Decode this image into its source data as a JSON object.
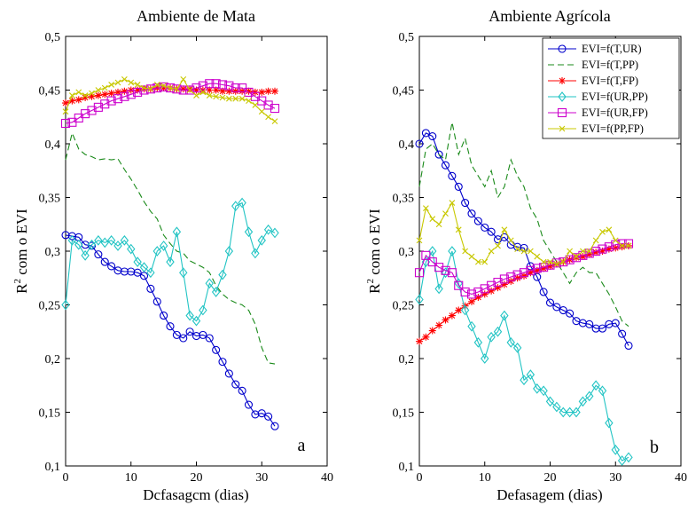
{
  "series_styles": [
    {
      "name": "EVI=f(T,UR)",
      "color": "#0000cc",
      "marker": "circle",
      "dash": "none"
    },
    {
      "name": "EVI=f(T,PP)",
      "color": "#1a8a1a",
      "marker": "none",
      "dash": "dashed"
    },
    {
      "name": "EVI=f(T,FP)",
      "color": "#ff0000",
      "marker": "star",
      "dash": "none"
    },
    {
      "name": "EVI=f(UR,PP)",
      "color": "#22c4c4",
      "marker": "diamond",
      "dash": "none"
    },
    {
      "name": "EVI=f(UR,FP)",
      "color": "#cc00cc",
      "marker": "square",
      "dash": "none"
    },
    {
      "name": "EVI=f(PP,FP)",
      "color": "#c8c800",
      "marker": "x",
      "dash": "none"
    }
  ],
  "chart_data": [
    {
      "type": "line",
      "title": "Ambiente de Mata",
      "xlabel": "Dcfasagcm (dias)",
      "ylabel_main": "R",
      "ylabel_sup": "2",
      "ylabel_rest": " com o EVI",
      "panel_label": "a",
      "xlim": [
        0,
        40
      ],
      "ylim": [
        0.1,
        0.5
      ],
      "xticks": [
        "0",
        "10",
        "20",
        "30",
        "40"
      ],
      "yticks": [
        "0,1",
        "0,15",
        "0,2",
        "0,25",
        "0,3",
        "0,35",
        "0,4",
        "0,45",
        "0,5"
      ],
      "legend": false,
      "series": [
        {
          "name": "EVI=f(T,UR)",
          "x": [
            0,
            1,
            2,
            3,
            4,
            5,
            6,
            7,
            8,
            9,
            10,
            11,
            12,
            13,
            14,
            15,
            16,
            17,
            18,
            19,
            20,
            21,
            22,
            23,
            24,
            25,
            26,
            27,
            28,
            29,
            30,
            31,
            32
          ],
          "values": [
            0.315,
            0.314,
            0.313,
            0.306,
            0.305,
            0.297,
            0.29,
            0.286,
            0.282,
            0.281,
            0.281,
            0.28,
            0.277,
            0.265,
            0.253,
            0.24,
            0.23,
            0.222,
            0.219,
            0.225,
            0.221,
            0.222,
            0.219,
            0.208,
            0.197,
            0.186,
            0.176,
            0.17,
            0.157,
            0.148,
            0.149,
            0.146,
            0.137
          ]
        },
        {
          "name": "EVI=f(T,PP)",
          "x": [
            0,
            1,
            2,
            3,
            4,
            5,
            6,
            7,
            8,
            9,
            10,
            11,
            12,
            13,
            14,
            15,
            16,
            17,
            18,
            19,
            20,
            21,
            22,
            23,
            24,
            25,
            26,
            27,
            28,
            29,
            30,
            31,
            32
          ],
          "values": [
            0.385,
            0.41,
            0.395,
            0.39,
            0.388,
            0.385,
            0.386,
            0.385,
            0.386,
            0.376,
            0.367,
            0.357,
            0.346,
            0.337,
            0.33,
            0.315,
            0.307,
            0.3,
            0.298,
            0.291,
            0.288,
            0.285,
            0.28,
            0.268,
            0.26,
            0.255,
            0.252,
            0.25,
            0.245,
            0.232,
            0.21,
            0.196,
            0.195
          ]
        },
        {
          "name": "EVI=f(T,FP)",
          "x": [
            0,
            1,
            2,
            3,
            4,
            5,
            6,
            7,
            8,
            9,
            10,
            11,
            12,
            13,
            14,
            15,
            16,
            17,
            18,
            19,
            20,
            21,
            22,
            23,
            24,
            25,
            26,
            27,
            28,
            29,
            30,
            31,
            32
          ],
          "values": [
            0.438,
            0.44,
            0.441,
            0.443,
            0.444,
            0.445,
            0.446,
            0.447,
            0.448,
            0.449,
            0.45,
            0.45,
            0.451,
            0.451,
            0.452,
            0.452,
            0.452,
            0.451,
            0.451,
            0.451,
            0.45,
            0.45,
            0.45,
            0.45,
            0.449,
            0.449,
            0.449,
            0.449,
            0.449,
            0.448,
            0.448,
            0.449,
            0.449
          ]
        },
        {
          "name": "EVI=f(UR,PP)",
          "x": [
            0,
            1,
            2,
            3,
            4,
            5,
            6,
            7,
            8,
            9,
            10,
            11,
            12,
            13,
            14,
            15,
            16,
            17,
            18,
            19,
            20,
            21,
            22,
            23,
            24,
            25,
            26,
            27,
            28,
            29,
            30,
            31,
            32
          ],
          "values": [
            0.25,
            0.31,
            0.306,
            0.296,
            0.306,
            0.31,
            0.308,
            0.31,
            0.305,
            0.31,
            0.302,
            0.29,
            0.285,
            0.28,
            0.3,
            0.305,
            0.29,
            0.318,
            0.28,
            0.24,
            0.235,
            0.245,
            0.27,
            0.262,
            0.278,
            0.3,
            0.342,
            0.345,
            0.318,
            0.298,
            0.31,
            0.32,
            0.317
          ]
        },
        {
          "name": "EVI=f(UR,FP)",
          "x": [
            0,
            1,
            2,
            3,
            4,
            5,
            6,
            7,
            8,
            9,
            10,
            11,
            12,
            13,
            14,
            15,
            16,
            17,
            18,
            19,
            20,
            21,
            22,
            23,
            24,
            25,
            26,
            27,
            28,
            29,
            30,
            31,
            32
          ],
          "values": [
            0.419,
            0.42,
            0.424,
            0.428,
            0.431,
            0.434,
            0.437,
            0.44,
            0.442,
            0.444,
            0.446,
            0.448,
            0.45,
            0.451,
            0.452,
            0.453,
            0.452,
            0.451,
            0.45,
            0.45,
            0.452,
            0.454,
            0.456,
            0.456,
            0.455,
            0.454,
            0.452,
            0.452,
            0.448,
            0.444,
            0.44,
            0.436,
            0.433
          ]
        },
        {
          "name": "EVI=f(PP,FP)",
          "x": [
            0,
            1,
            2,
            3,
            4,
            5,
            6,
            7,
            8,
            9,
            10,
            11,
            12,
            13,
            14,
            15,
            16,
            17,
            18,
            19,
            20,
            21,
            22,
            23,
            24,
            25,
            26,
            27,
            28,
            29,
            30,
            31,
            32
          ],
          "values": [
            0.43,
            0.445,
            0.448,
            0.445,
            0.447,
            0.45,
            0.452,
            0.455,
            0.457,
            0.46,
            0.457,
            0.455,
            0.452,
            0.451,
            0.455,
            0.454,
            0.452,
            0.451,
            0.46,
            0.45,
            0.445,
            0.448,
            0.445,
            0.444,
            0.443,
            0.442,
            0.442,
            0.442,
            0.44,
            0.436,
            0.43,
            0.425,
            0.421
          ]
        }
      ]
    },
    {
      "type": "line",
      "title": "Ambiente Agrícola",
      "xlabel": "Defasagem (dias)",
      "ylabel_main": "R",
      "ylabel_sup": "2",
      "ylabel_rest": " com o EVI",
      "panel_label": "b",
      "xlim": [
        0,
        40
      ],
      "ylim": [
        0.1,
        0.5
      ],
      "xticks": [
        "0",
        "10",
        "20",
        "30",
        "40"
      ],
      "yticks": [
        "0,1",
        "0,15",
        "0,2",
        "0,25",
        "0,3",
        "0,35",
        "0,4",
        "0,45",
        "0,5"
      ],
      "legend": true,
      "legend_position": "top-right",
      "series": [
        {
          "name": "EVI=f(T,UR)",
          "x": [
            0,
            1,
            2,
            3,
            4,
            5,
            6,
            7,
            8,
            9,
            10,
            11,
            12,
            13,
            14,
            15,
            16,
            17,
            18,
            19,
            20,
            21,
            22,
            23,
            24,
            25,
            26,
            27,
            28,
            29,
            30,
            31,
            32
          ],
          "values": [
            0.4,
            0.41,
            0.407,
            0.39,
            0.38,
            0.37,
            0.36,
            0.345,
            0.335,
            0.328,
            0.322,
            0.318,
            0.311,
            0.313,
            0.306,
            0.304,
            0.303,
            0.286,
            0.276,
            0.262,
            0.252,
            0.248,
            0.245,
            0.242,
            0.235,
            0.233,
            0.232,
            0.228,
            0.228,
            0.232,
            0.233,
            0.223,
            0.212
          ]
        },
        {
          "name": "EVI=f(T,PP)",
          "x": [
            0,
            1,
            2,
            3,
            4,
            5,
            6,
            7,
            8,
            9,
            10,
            11,
            12,
            13,
            14,
            15,
            16,
            17,
            18,
            19,
            20,
            21,
            22,
            23,
            24,
            25,
            26,
            27,
            28,
            29,
            30,
            31,
            32
          ],
          "values": [
            0.36,
            0.395,
            0.4,
            0.39,
            0.385,
            0.42,
            0.39,
            0.405,
            0.38,
            0.37,
            0.36,
            0.375,
            0.35,
            0.36,
            0.385,
            0.37,
            0.36,
            0.34,
            0.33,
            0.31,
            0.3,
            0.29,
            0.28,
            0.27,
            0.28,
            0.285,
            0.28,
            0.28,
            0.27,
            0.26,
            0.248,
            0.235,
            0.23
          ]
        },
        {
          "name": "EVI=f(T,FP)",
          "x": [
            0,
            1,
            2,
            3,
            4,
            5,
            6,
            7,
            8,
            9,
            10,
            11,
            12,
            13,
            14,
            15,
            16,
            17,
            18,
            19,
            20,
            21,
            22,
            23,
            24,
            25,
            26,
            27,
            28,
            29,
            30,
            31,
            32
          ],
          "values": [
            0.216,
            0.22,
            0.226,
            0.231,
            0.236,
            0.24,
            0.245,
            0.249,
            0.253,
            0.257,
            0.26,
            0.263,
            0.266,
            0.269,
            0.272,
            0.275,
            0.277,
            0.28,
            0.282,
            0.284,
            0.286,
            0.288,
            0.29,
            0.292,
            0.294,
            0.295,
            0.297,
            0.299,
            0.3,
            0.302,
            0.303,
            0.304,
            0.305
          ]
        },
        {
          "name": "EVI=f(UR,PP)",
          "x": [
            0,
            1,
            2,
            3,
            4,
            5,
            6,
            7,
            8,
            9,
            10,
            11,
            12,
            13,
            14,
            15,
            16,
            17,
            18,
            19,
            20,
            21,
            22,
            23,
            24,
            25,
            26,
            27,
            28,
            29,
            30,
            31,
            32
          ],
          "values": [
            0.255,
            0.29,
            0.3,
            0.265,
            0.28,
            0.3,
            0.27,
            0.245,
            0.23,
            0.215,
            0.2,
            0.22,
            0.225,
            0.24,
            0.215,
            0.21,
            0.18,
            0.185,
            0.172,
            0.17,
            0.16,
            0.155,
            0.15,
            0.15,
            0.15,
            0.16,
            0.165,
            0.175,
            0.17,
            0.14,
            0.115,
            0.105,
            0.108
          ]
        },
        {
          "name": "EVI=f(UR,FP)",
          "x": [
            0,
            1,
            2,
            3,
            4,
            5,
            6,
            7,
            8,
            9,
            10,
            11,
            12,
            13,
            14,
            15,
            16,
            17,
            18,
            19,
            20,
            21,
            22,
            23,
            24,
            25,
            26,
            27,
            28,
            29,
            30,
            31,
            32
          ],
          "values": [
            0.28,
            0.296,
            0.29,
            0.285,
            0.282,
            0.28,
            0.268,
            0.262,
            0.26,
            0.262,
            0.265,
            0.268,
            0.271,
            0.274,
            0.276,
            0.278,
            0.28,
            0.282,
            0.284,
            0.285,
            0.287,
            0.289,
            0.29,
            0.292,
            0.294,
            0.296,
            0.298,
            0.3,
            0.302,
            0.304,
            0.306,
            0.307,
            0.307
          ]
        },
        {
          "name": "EVI=f(PP,FP)",
          "x": [
            0,
            1,
            2,
            3,
            4,
            5,
            6,
            7,
            8,
            9,
            10,
            11,
            12,
            13,
            14,
            15,
            16,
            17,
            18,
            19,
            20,
            21,
            22,
            23,
            24,
            25,
            26,
            27,
            28,
            29,
            30,
            31,
            32
          ],
          "values": [
            0.31,
            0.34,
            0.33,
            0.325,
            0.335,
            0.345,
            0.32,
            0.3,
            0.295,
            0.29,
            0.29,
            0.3,
            0.305,
            0.32,
            0.31,
            0.302,
            0.3,
            0.3,
            0.295,
            0.29,
            0.29,
            0.288,
            0.29,
            0.3,
            0.295,
            0.3,
            0.3,
            0.31,
            0.318,
            0.32,
            0.31,
            0.305,
            0.305
          ]
        }
      ]
    }
  ]
}
